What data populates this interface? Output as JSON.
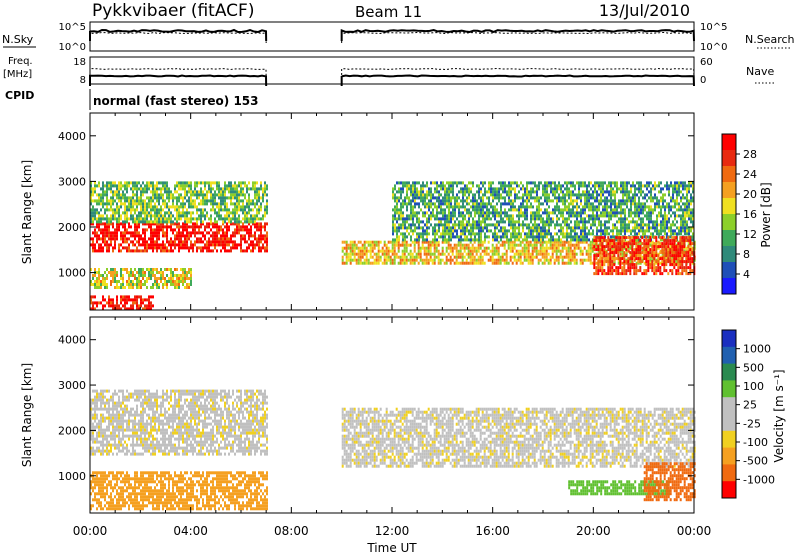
{
  "header": {
    "station": "Pykkvibaer (fitACF)",
    "beam": "Beam 11",
    "date": "13/Jul/2010"
  },
  "top_panels": {
    "nsky": {
      "label": "N.Sky",
      "tick_top": "10^5",
      "tick_bottom": "10^0"
    },
    "nsearch": {
      "label": "N.Search",
      "tick_top": "10^5",
      "tick_bottom": "10^0"
    },
    "freq": {
      "label_line1": "Freq.",
      "label_line2": "[MHz]",
      "tick_top": "18",
      "tick_bottom": "8"
    },
    "nave": {
      "label": "Nave",
      "tick_top": "60",
      "tick_bottom": "0"
    },
    "cpid": {
      "label": "CPID",
      "value": "normal (fast stereo) 153"
    }
  },
  "colors": {
    "power_scale": [
      "#1a1aff",
      "#1f4fb8",
      "#2f8a7a",
      "#3faa5a",
      "#8ccf2a",
      "#f0e020",
      "#f5a020",
      "#f06a10",
      "#e82a10",
      "#ff0000"
    ],
    "velocity_scale": [
      "#1a2fc0",
      "#2060b0",
      "#2a8a50",
      "#60c030",
      "#c0c0c0",
      "#c0c0c0",
      "#f0d020",
      "#f5a020",
      "#f06a10",
      "#ff0000"
    ]
  },
  "chart_data": [
    {
      "type": "heatmap",
      "panel": "power",
      "ylabel": "Slant Range [km]",
      "ylim": [
        180,
        4500
      ],
      "y_ticks": [
        "1000",
        "2000",
        "3000",
        "4000"
      ],
      "xlim": [
        0,
        24
      ],
      "x_ticks": [
        "00:00",
        "04:00",
        "08:00",
        "12:00",
        "16:00",
        "20:00",
        "00:00"
      ],
      "colorbar": {
        "label": "Power [dB]",
        "ticks": [
          "28",
          "24",
          "20",
          "16",
          "12",
          "8",
          "4"
        ],
        "range": [
          0,
          30
        ]
      },
      "data_gaps_hours": [
        [
          7.0,
          10.0
        ]
      ],
      "regions": [
        {
          "t": [
            0.0,
            7.0
          ],
          "range_km": [
            1500,
            2100
          ],
          "level": 28
        },
        {
          "t": [
            0.0,
            7.0
          ],
          "range_km": [
            2100,
            3000
          ],
          "level": 12
        },
        {
          "t": [
            0.0,
            2.5
          ],
          "range_km": [
            200,
            500
          ],
          "level": 28
        },
        {
          "t": [
            0.0,
            4.0
          ],
          "range_km": [
            700,
            1100
          ],
          "level": 16
        },
        {
          "t": [
            10.0,
            24.0
          ],
          "range_km": [
            1200,
            1700
          ],
          "level": 18
        },
        {
          "t": [
            12.0,
            24.0
          ],
          "range_km": [
            1700,
            3000
          ],
          "level": 10
        },
        {
          "t": [
            20.0,
            24.0
          ],
          "range_km": [
            1000,
            1800
          ],
          "level": 26
        }
      ]
    },
    {
      "type": "heatmap",
      "panel": "velocity",
      "ylabel": "Slant Range [km]",
      "ylim": [
        180,
        4500
      ],
      "y_ticks": [
        "1000",
        "2000",
        "3000",
        "4000"
      ],
      "xlim": [
        0,
        24
      ],
      "x_ticks": [
        "00:00",
        "04:00",
        "08:00",
        "12:00",
        "16:00",
        "20:00",
        "00:00"
      ],
      "xlabel": "Time UT",
      "colorbar": {
        "label": "Velocity [m s⁻¹]",
        "ticks": [
          "1000",
          "500",
          "100",
          "25",
          "-25",
          "-100",
          "-500",
          "-1000"
        ]
      },
      "data_gaps_hours": [
        [
          7.0,
          10.0
        ]
      ],
      "regions": [
        {
          "t": [
            0.0,
            7.0
          ],
          "range_km": [
            1500,
            2900
          ],
          "velocity": 0
        },
        {
          "t": [
            0.0,
            7.0
          ],
          "range_km": [
            300,
            1100
          ],
          "velocity": -150
        },
        {
          "t": [
            10.0,
            24.0
          ],
          "range_km": [
            1200,
            2500
          ],
          "velocity": 0
        },
        {
          "t": [
            19.0,
            23.0
          ],
          "range_km": [
            600,
            900
          ],
          "velocity": 150
        },
        {
          "t": [
            22.0,
            24.0
          ],
          "range_km": [
            500,
            1300
          ],
          "velocity": -400
        }
      ]
    }
  ]
}
